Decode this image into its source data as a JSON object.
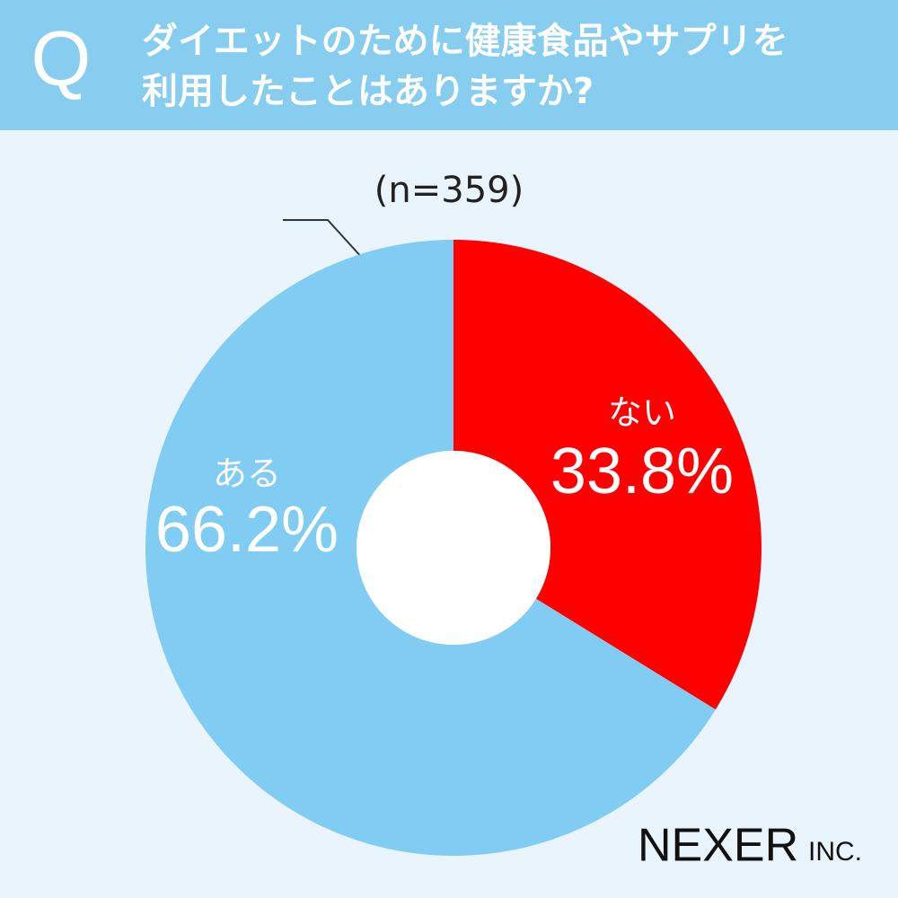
{
  "chart_data": {
    "type": "pie",
    "donut": true,
    "question_mark": "Q",
    "title": [
      "ダイエットのために健康食品やサプリを",
      "利用したことはありますか?"
    ],
    "subtitle": "(n=359)",
    "categories": [
      "ない",
      "ある"
    ],
    "values": [
      33.8,
      66.2
    ],
    "value_labels": [
      "33.8%",
      "66.2%"
    ],
    "colors": [
      "#ff0000",
      "#80ccf2"
    ],
    "logo": "NEXER",
    "logo_suffix": "INC."
  }
}
